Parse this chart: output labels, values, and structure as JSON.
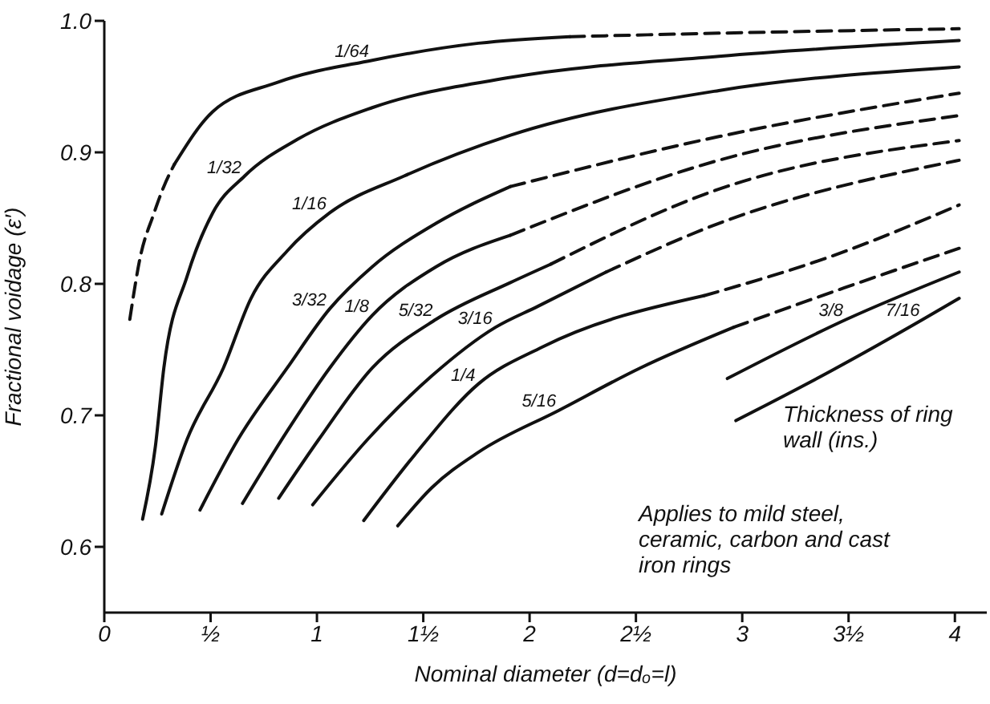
{
  "chart_data": {
    "type": "line",
    "xlabel": "Nominal diameter (d=dₒ=l)",
    "ylabel": "Fractional voidage (ε′)",
    "xlim": [
      0,
      4.15
    ],
    "ylim": [
      0.55,
      1.0
    ],
    "xticks": [
      0,
      {
        "value": 0.5,
        "label": "½"
      },
      1,
      {
        "value": 1.5,
        "label": "1½"
      },
      2,
      {
        "value": 2.5,
        "label": "2½"
      },
      3,
      {
        "value": 3.5,
        "label": "3½"
      },
      4
    ],
    "yticks": [
      0.6,
      0.7,
      0.8,
      0.9,
      {
        "value": 1.0,
        "label": "1.0"
      }
    ],
    "marker": "none",
    "line_style": "solid",
    "annotations": [
      "Thickness of ring wall (ins.)",
      "Applies to mild steel, ceramic, carbon and cast iron rings"
    ],
    "series": [
      {
        "color": "#111111",
        "line_style": "dashed",
        "x": [
          0.12,
          0.17,
          0.23,
          0.28,
          0.33
        ],
        "values": [
          0.773,
          0.821,
          0.852,
          0.874,
          0.891
        ]
      },
      {
        "name": "1/64",
        "color": "#111111",
        "x": [
          0.33,
          0.51,
          0.81,
          1.26,
          1.76,
          2.19
        ],
        "values": [
          0.891,
          0.931,
          0.953,
          0.97,
          0.983,
          0.988
        ]
      },
      {
        "color": "#111111",
        "line_style": "dashed",
        "x": [
          2.19,
          3.0,
          4.02
        ],
        "values": [
          0.988,
          0.991,
          0.994
        ]
      },
      {
        "name": "1/32",
        "color": "#111111",
        "x": [
          0.18,
          0.24,
          0.28,
          0.39,
          0.51,
          0.66,
          0.91,
          1.26,
          1.91,
          2.89,
          4.02
        ],
        "values": [
          0.621,
          0.676,
          0.736,
          0.806,
          0.854,
          0.882,
          0.91,
          0.934,
          0.957,
          0.973,
          0.985
        ]
      },
      {
        "name": "1/16",
        "color": "#111111",
        "x": [
          0.27,
          0.39,
          0.56,
          0.69,
          0.86,
          1.06,
          1.41,
          1.91,
          2.89,
          4.02
        ],
        "values": [
          0.625,
          0.682,
          0.736,
          0.789,
          0.825,
          0.854,
          0.882,
          0.913,
          0.947,
          0.965
        ]
      },
      {
        "name": "3/32",
        "color": "#111111",
        "x": [
          0.45,
          0.63,
          0.86,
          1.06,
          1.26,
          1.56,
          1.91
        ],
        "values": [
          0.628,
          0.682,
          0.736,
          0.781,
          0.813,
          0.846,
          0.874
        ]
      },
      {
        "color": "#111111",
        "line_style": "dashed",
        "x": [
          1.91,
          2.89,
          4.02
        ],
        "values": [
          0.874,
          0.912,
          0.945
        ]
      },
      {
        "name": "1/8",
        "color": "#111111",
        "x": [
          0.65,
          0.86,
          1.06,
          1.26,
          1.56,
          1.91
        ],
        "values": [
          0.633,
          0.688,
          0.736,
          0.776,
          0.813,
          0.837
        ]
      },
      {
        "color": "#111111",
        "line_style": "dashed",
        "x": [
          1.91,
          2.89,
          4.02
        ],
        "values": [
          0.837,
          0.894,
          0.928
        ]
      },
      {
        "name": "5/32",
        "color": "#111111",
        "x": [
          0.82,
          1.01,
          1.26,
          1.56,
          1.91,
          2.1
        ],
        "values": [
          0.637,
          0.682,
          0.736,
          0.773,
          0.801,
          0.815
        ]
      },
      {
        "color": "#111111",
        "line_style": "dashed",
        "x": [
          2.1,
          2.89,
          4.02
        ],
        "values": [
          0.815,
          0.872,
          0.909
        ]
      },
      {
        "name": "3/16",
        "color": "#111111",
        "x": [
          0.98,
          1.24,
          1.54,
          1.84,
          2.04,
          2.36
        ],
        "values": [
          0.632,
          0.682,
          0.73,
          0.767,
          0.783,
          0.809
        ]
      },
      {
        "color": "#111111",
        "line_style": "dashed",
        "x": [
          2.36,
          2.89,
          4.02
        ],
        "values": [
          0.809,
          0.846,
          0.894
        ]
      },
      {
        "name": "1/4",
        "color": "#111111",
        "x": [
          1.22,
          1.46,
          1.76,
          2.06,
          2.82
        ],
        "values": [
          0.62,
          0.67,
          0.724,
          0.752,
          0.791
        ]
      },
      {
        "color": "#111111",
        "line_style": "dashed",
        "x": [
          2.82,
          3.42,
          4.02
        ],
        "values": [
          0.791,
          0.821,
          0.86
        ]
      },
      {
        "name": "5/16",
        "color": "#111111",
        "x": [
          1.38,
          1.54,
          1.76,
          2.14,
          2.52,
          2.96
        ],
        "values": [
          0.616,
          0.645,
          0.672,
          0.704,
          0.736,
          0.767
        ]
      },
      {
        "color": "#111111",
        "line_style": "dashed",
        "x": [
          2.96,
          3.48,
          4.02
        ],
        "values": [
          0.767,
          0.797,
          0.827
        ]
      },
      {
        "name": "3/8",
        "color": "#111111",
        "x": [
          2.93,
          3.49,
          4.02
        ],
        "values": [
          0.728,
          0.773,
          0.809
        ]
      },
      {
        "name": "7/16",
        "color": "#111111",
        "x": [
          2.97,
          3.42,
          3.85,
          4.02
        ],
        "values": [
          0.696,
          0.734,
          0.773,
          0.789
        ]
      }
    ]
  }
}
